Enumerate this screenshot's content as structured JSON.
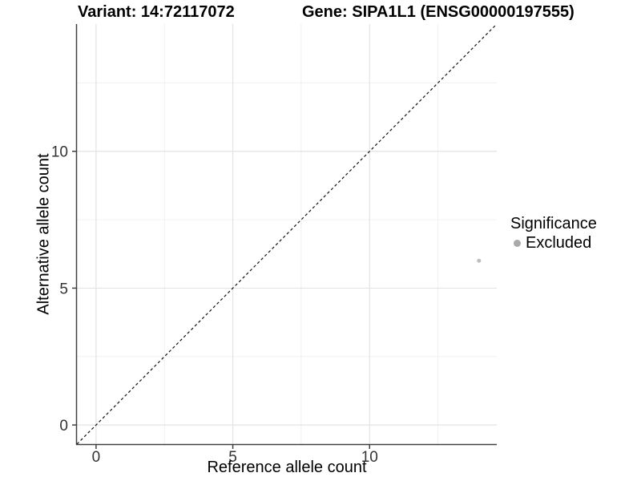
{
  "header": {
    "variant_title": "Variant: 14:72117072",
    "gene_title": "Gene: SIPA1L1 (ENSG00000197555)"
  },
  "chart_data": {
    "type": "scatter",
    "title_left": "Variant: 14:72117072",
    "title_right": "Gene: SIPA1L1 (ENSG00000197555)",
    "xlabel": "Reference allele count",
    "ylabel": "Alternative allele count",
    "xlim": [
      -0.7,
      14.65
    ],
    "ylim": [
      -0.7,
      14.65
    ],
    "xticks": [
      0,
      5,
      10
    ],
    "yticks": [
      0,
      5,
      10
    ],
    "x_minor_ticks": [
      2.5,
      7.5,
      12.5
    ],
    "y_minor_ticks": [
      2.5,
      7.5,
      12.5
    ],
    "grid": "major and minor, light gray, on white panel",
    "reference_line": {
      "type": "identity y=x",
      "style": "dashed",
      "color": "#111111"
    },
    "points": [
      {
        "x": 14,
        "y": 6,
        "significance": "Excluded",
        "color": "#bcbcbc"
      }
    ],
    "legend": {
      "position": "right",
      "title": "Significance",
      "items": [
        {
          "label": "Excluded",
          "color": "#a9a9a9"
        }
      ]
    },
    "colors": {
      "axis_line": "#404040",
      "tick_label": "#333333",
      "grid_major": "#e3e3e3",
      "grid_minor": "#f0f0f0",
      "background": "#ffffff"
    }
  }
}
